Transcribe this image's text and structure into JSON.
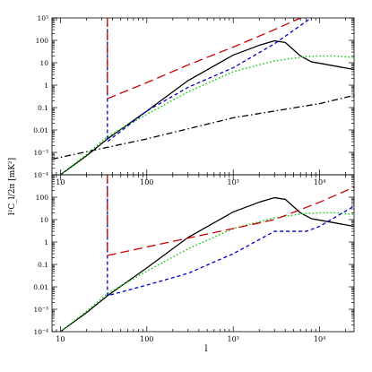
{
  "figure": {
    "xlabel": "l",
    "ylabel": "l²C_l/2π  [mK²]"
  },
  "chart_data": [
    {
      "type": "line",
      "panel": "top",
      "xscale": "log",
      "yscale": "log",
      "xlim": [
        8,
        25000
      ],
      "ylim": [
        0.0001,
        1000
      ],
      "x_ticks": [
        {
          "v": 10,
          "label": "10"
        },
        {
          "v": 100,
          "label": "100"
        },
        {
          "v": 1000,
          "label": "10³"
        },
        {
          "v": 10000,
          "label": "10⁴"
        }
      ],
      "y_ticks": [
        {
          "v": 0.0001,
          "label": "10⁻⁴"
        },
        {
          "v": 0.001,
          "label": "10⁻³"
        },
        {
          "v": 0.01,
          "label": "0.01"
        },
        {
          "v": 0.1,
          "label": "0.1"
        },
        {
          "v": 1,
          "label": "1"
        },
        {
          "v": 10,
          "label": "10"
        },
        {
          "v": 100,
          "label": "100"
        },
        {
          "v": 1000,
          "label": "10³"
        }
      ],
      "series": [
        {
          "color": "#000000",
          "dash": "solid",
          "points": [
            [
              10,
              0.0001
            ],
            [
              20,
              0.0007
            ],
            [
              35,
              0.004
            ],
            [
              100,
              0.07
            ],
            [
              300,
              1.6
            ],
            [
              1000,
              22
            ],
            [
              2000,
              60
            ],
            [
              3000,
              95
            ],
            [
              4000,
              80
            ],
            [
              6000,
              20
            ],
            [
              8000,
              11
            ],
            [
              10000,
              9.5
            ],
            [
              25000,
              5
            ]
          ]
        },
        {
          "color": "#00cc00",
          "dash": "dotted",
          "points": [
            [
              10,
              0.0001
            ],
            [
              20,
              0.0008
            ],
            [
              35,
              0.005
            ],
            [
              100,
              0.05
            ],
            [
              300,
              0.5
            ],
            [
              1000,
              4
            ],
            [
              3000,
              12
            ],
            [
              7000,
              19
            ],
            [
              10000,
              20
            ],
            [
              15000,
              20
            ],
            [
              25000,
              17
            ]
          ]
        },
        {
          "color": "#0000cc",
          "dash": "dashed",
          "points": [
            [
              35,
              600
            ],
            [
              35,
              0.003
            ],
            [
              100,
              0.07
            ],
            [
              300,
              0.8
            ],
            [
              1000,
              6
            ],
            [
              3000,
              70
            ],
            [
              7000,
              700
            ],
            [
              8000,
              1000
            ]
          ]
        },
        {
          "color": "#cc0000",
          "dash": "longdash",
          "points": [
            [
              35,
              1000
            ],
            [
              35,
              0.25
            ],
            [
              100,
              1.3
            ],
            [
              300,
              8
            ],
            [
              1000,
              50
            ],
            [
              3000,
              300
            ],
            [
              6000,
              1000
            ]
          ]
        },
        {
          "color": "#000000",
          "dash": "dashdot",
          "points": [
            [
              8,
              0.0005
            ],
            [
              100,
              0.004
            ],
            [
              1000,
              0.035
            ],
            [
              10000,
              0.15
            ],
            [
              25000,
              0.35
            ]
          ]
        }
      ]
    },
    {
      "type": "line",
      "panel": "bottom",
      "xscale": "log",
      "yscale": "log",
      "xlim": [
        8,
        25000
      ],
      "ylim": [
        0.0001,
        1000
      ],
      "x_ticks": [
        {
          "v": 10,
          "label": "10"
        },
        {
          "v": 100,
          "label": "100"
        },
        {
          "v": 1000,
          "label": "10³"
        },
        {
          "v": 10000,
          "label": "10⁴"
        }
      ],
      "y_ticks": [
        {
          "v": 0.0001,
          "label": "10⁻⁴"
        },
        {
          "v": 0.001,
          "label": "10⁻³"
        },
        {
          "v": 0.01,
          "label": "0.01"
        },
        {
          "v": 0.1,
          "label": "0.1"
        },
        {
          "v": 1,
          "label": "1"
        },
        {
          "v": 10,
          "label": "10"
        },
        {
          "v": 100,
          "label": "100"
        }
      ],
      "series": [
        {
          "color": "#000000",
          "dash": "solid",
          "points": [
            [
              10,
              0.0001
            ],
            [
              20,
              0.0007
            ],
            [
              35,
              0.004
            ],
            [
              100,
              0.07
            ],
            [
              300,
              1.6
            ],
            [
              1000,
              22
            ],
            [
              2000,
              60
            ],
            [
              3000,
              95
            ],
            [
              4000,
              80
            ],
            [
              6000,
              20
            ],
            [
              8000,
              11
            ],
            [
              10000,
              9.5
            ],
            [
              25000,
              5
            ]
          ]
        },
        {
          "color": "#00cc00",
          "dash": "dotted",
          "points": [
            [
              10,
              0.0001
            ],
            [
              20,
              0.0008
            ],
            [
              35,
              0.005
            ],
            [
              100,
              0.05
            ],
            [
              300,
              0.5
            ],
            [
              1000,
              4
            ],
            [
              3000,
              12
            ],
            [
              7000,
              19
            ],
            [
              10000,
              20
            ],
            [
              15000,
              20
            ],
            [
              25000,
              17
            ]
          ]
        },
        {
          "color": "#0000cc",
          "dash": "dashed",
          "points": [
            [
              35,
              600
            ],
            [
              35,
              0.004
            ],
            [
              100,
              0.012
            ],
            [
              300,
              0.04
            ],
            [
              1000,
              0.3
            ],
            [
              3000,
              3
            ],
            [
              7000,
              3
            ],
            [
              10000,
              5
            ],
            [
              25000,
              40
            ]
          ]
        },
        {
          "color": "#cc0000",
          "dash": "longdash",
          "points": [
            [
              35,
              1000
            ],
            [
              35,
              0.25
            ],
            [
              100,
              0.6
            ],
            [
              300,
              1.5
            ],
            [
              1000,
              4
            ],
            [
              3000,
              10
            ],
            [
              10000,
              60
            ],
            [
              25000,
              280
            ]
          ]
        }
      ]
    }
  ]
}
